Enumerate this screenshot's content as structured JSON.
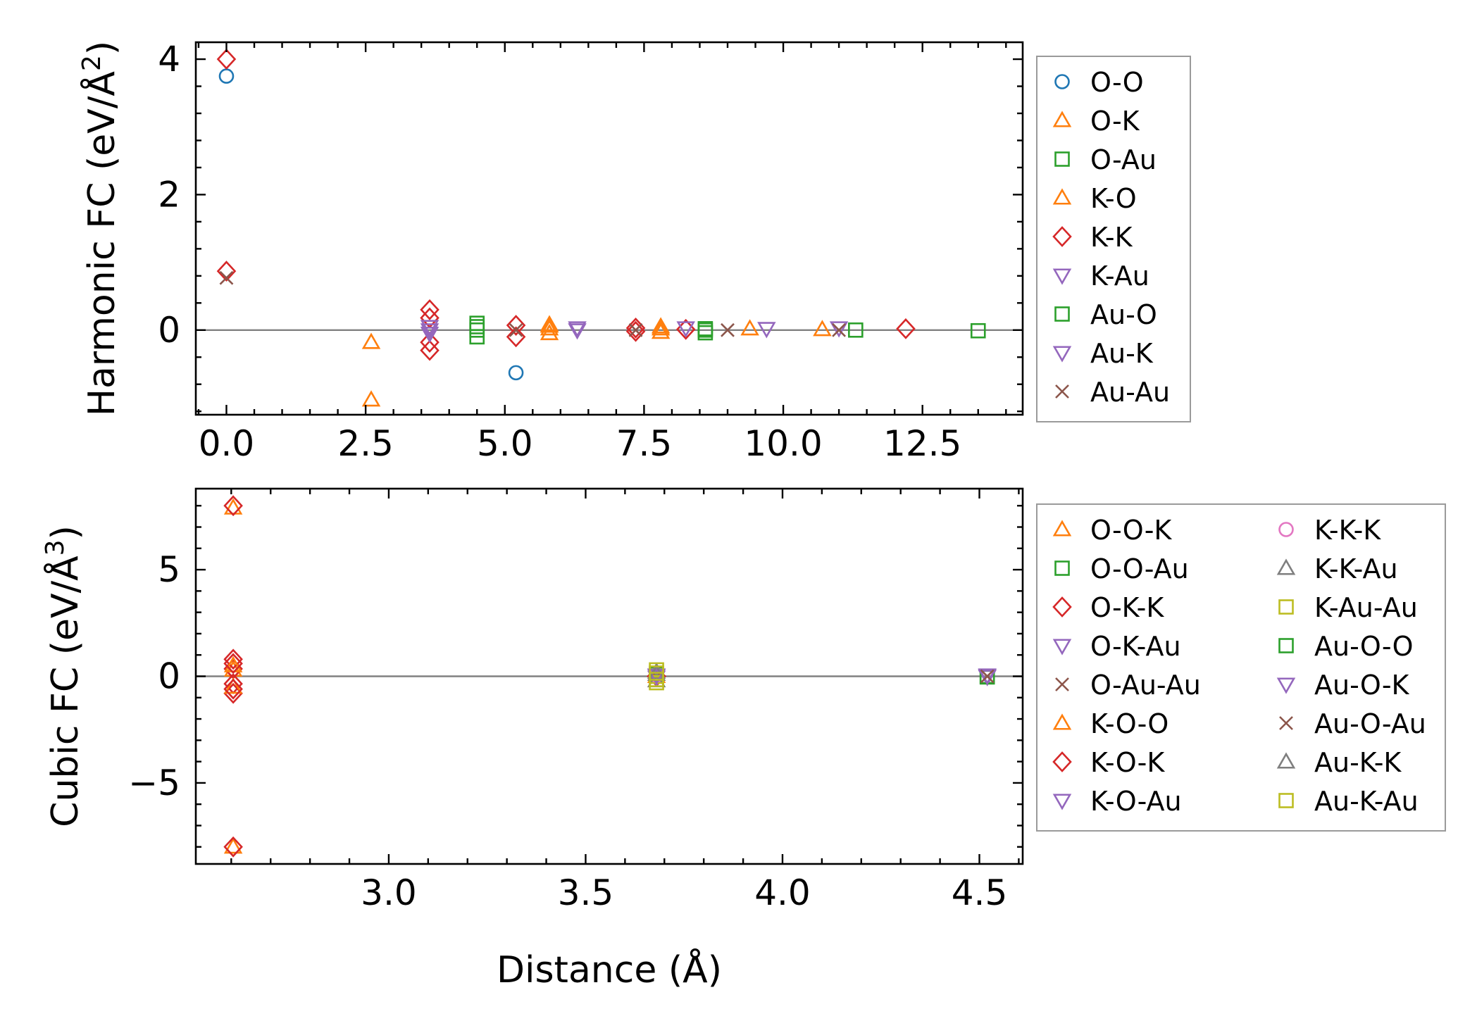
{
  "chart_data": [
    {
      "type": "scatter",
      "title": "",
      "xlabel": "",
      "ylabel": "Harmonic FC (eV/Å²)",
      "ylabel_parts": {
        "base": "Harmonic FC (eV/Å",
        "sup": "2",
        "close": ")"
      },
      "xlim": [
        -0.55,
        14.3
      ],
      "ylim": [
        -1.25,
        4.25
      ],
      "xticks": [
        0.0,
        2.5,
        5.0,
        7.5,
        10.0,
        12.5
      ],
      "xtick_labels": [
        "0.0",
        "2.5",
        "5.0",
        "7.5",
        "10.0",
        "12.5"
      ],
      "yticks": [
        0,
        2,
        4
      ],
      "ytick_labels": [
        "0",
        "2",
        "4"
      ],
      "hline": 0,
      "legend": {
        "position": "outside-right",
        "columns": 1
      },
      "series": [
        {
          "name": "O-O",
          "color": "#1f77b4",
          "marker": "circle",
          "points": [
            [
              0,
              3.75
            ],
            [
              5.2,
              -0.63
            ]
          ]
        },
        {
          "name": "O-K",
          "color": "#ff7f0e",
          "marker": "triangle-up",
          "points": [
            [
              2.6,
              -0.18
            ],
            [
              2.6,
              -1.03
            ],
            [
              5.8,
              0.08
            ],
            [
              5.8,
              0.02
            ],
            [
              5.8,
              -0.05
            ],
            [
              7.8,
              0.05
            ],
            [
              7.8,
              -0.03
            ],
            [
              9.4,
              0.02
            ]
          ]
        },
        {
          "name": "O-Au",
          "color": "#2ca02c",
          "marker": "square",
          "points": [
            [
              4.5,
              0.1
            ],
            [
              4.5,
              0.0
            ],
            [
              4.5,
              -0.1
            ],
            [
              8.6,
              0.02
            ],
            [
              8.6,
              -0.04
            ],
            [
              11.3,
              0.0
            ],
            [
              13.5,
              -0.01
            ]
          ]
        },
        {
          "name": "K-O",
          "color": "#ff7f0e",
          "marker": "triangle-up",
          "points": [
            [
              5.8,
              0.06
            ],
            [
              7.8,
              0.02
            ],
            [
              10.7,
              0.01
            ]
          ]
        },
        {
          "name": "K-K",
          "color": "#d62728",
          "marker": "diamond",
          "points": [
            [
              0,
              4.0
            ],
            [
              0,
              0.87
            ],
            [
              3.65,
              0.3
            ],
            [
              3.65,
              0.18
            ],
            [
              3.65,
              -0.18
            ],
            [
              3.65,
              -0.3
            ],
            [
              5.2,
              0.07
            ],
            [
              5.2,
              -0.1
            ],
            [
              7.35,
              0.03
            ],
            [
              7.35,
              -0.02
            ],
            [
              8.25,
              0.01
            ],
            [
              12.2,
              0.02
            ]
          ]
        },
        {
          "name": "K-Au",
          "color": "#9467bd",
          "marker": "triangle-down",
          "points": [
            [
              3.65,
              0.05
            ],
            [
              3.65,
              -0.05
            ],
            [
              6.3,
              0.03
            ],
            [
              8.25,
              0.03
            ],
            [
              11.0,
              0.03
            ]
          ]
        },
        {
          "name": "Au-O",
          "color": "#2ca02c",
          "marker": "square",
          "points": [
            [
              4.5,
              0.05
            ],
            [
              8.6,
              0.0
            ]
          ]
        },
        {
          "name": "Au-K",
          "color": "#9467bd",
          "marker": "triangle-down",
          "points": [
            [
              3.65,
              0.0
            ],
            [
              6.3,
              0.0
            ],
            [
              9.7,
              0.02
            ]
          ]
        },
        {
          "name": "Au-Au",
          "color": "#8c564b",
          "marker": "x",
          "points": [
            [
              0,
              0.77
            ],
            [
              5.2,
              0.0
            ],
            [
              7.35,
              0.0
            ],
            [
              9.0,
              0.0
            ],
            [
              11.0,
              0.0
            ]
          ]
        }
      ]
    },
    {
      "type": "scatter",
      "title": "",
      "xlabel": "Distance (Å)",
      "ylabel": "Cubic FC (eV/Å³)",
      "ylabel_parts": {
        "base": "Cubic FC (eV/Å",
        "sup": "3",
        "close": ")"
      },
      "xlim": [
        2.51,
        4.61
      ],
      "ylim": [
        -8.8,
        8.8
      ],
      "xticks": [
        3.0,
        3.5,
        4.0,
        4.5
      ],
      "xtick_labels": [
        "3.0",
        "3.5",
        "4.0",
        "4.5"
      ],
      "yticks": [
        -5,
        0,
        5
      ],
      "ytick_labels": [
        "−5",
        "0",
        "5"
      ],
      "hline": 0,
      "legend": {
        "position": "outside-right",
        "columns": 2
      },
      "series": [
        {
          "name": "O-O-K",
          "color": "#ff7f0e",
          "marker": "triangle-up",
          "points": [
            [
              2.605,
              7.9
            ],
            [
              2.605,
              -8.0
            ],
            [
              2.605,
              0.3
            ],
            [
              3.68,
              0.0
            ]
          ]
        },
        {
          "name": "O-O-Au",
          "color": "#2ca02c",
          "marker": "square",
          "points": [
            [
              3.68,
              0.1
            ],
            [
              4.52,
              0.0
            ]
          ]
        },
        {
          "name": "O-K-K",
          "color": "#d62728",
          "marker": "diamond",
          "points": [
            [
              2.605,
              8.0
            ],
            [
              2.605,
              -8.0
            ],
            [
              2.605,
              0.8
            ],
            [
              2.605,
              0.35
            ],
            [
              2.605,
              -0.35
            ],
            [
              2.605,
              -0.8
            ],
            [
              3.68,
              0.0
            ]
          ]
        },
        {
          "name": "O-K-Au",
          "color": "#9467bd",
          "marker": "triangle-down",
          "points": [
            [
              3.68,
              0.05
            ],
            [
              4.52,
              0.05
            ]
          ]
        },
        {
          "name": "O-Au-Au",
          "color": "#8c564b",
          "marker": "x",
          "points": [
            [
              3.68,
              0.0
            ],
            [
              4.52,
              0.0
            ]
          ]
        },
        {
          "name": "K-O-O",
          "color": "#ff7f0e",
          "marker": "triangle-up",
          "points": [
            [
              2.605,
              0.5
            ],
            [
              2.605,
              -0.5
            ]
          ]
        },
        {
          "name": "K-O-K",
          "color": "#d62728",
          "marker": "diamond",
          "points": [
            [
              2.605,
              0.6
            ],
            [
              2.605,
              -0.6
            ],
            [
              3.68,
              0.0
            ]
          ]
        },
        {
          "name": "K-O-Au",
          "color": "#9467bd",
          "marker": "triangle-down",
          "points": [
            [
              3.68,
              -0.05
            ],
            [
              4.52,
              -0.02
            ]
          ]
        },
        {
          "name": "K-K-K",
          "color": "#e377c2",
          "marker": "circle",
          "points": [
            [
              3.68,
              0.02
            ]
          ]
        },
        {
          "name": "K-K-Au",
          "color": "#7f7f7f",
          "marker": "triangle-up",
          "points": [
            [
              3.68,
              0.2
            ],
            [
              3.68,
              -0.2
            ]
          ]
        },
        {
          "name": "K-Au-Au",
          "color": "#bcbd22",
          "marker": "square",
          "points": [
            [
              3.68,
              0.3
            ],
            [
              3.68,
              -0.3
            ],
            [
              3.68,
              0.0
            ]
          ]
        },
        {
          "name": "Au-O-O",
          "color": "#2ca02c",
          "marker": "square",
          "points": [
            [
              4.52,
              -0.03
            ]
          ]
        },
        {
          "name": "Au-O-K",
          "color": "#9467bd",
          "marker": "triangle-down",
          "points": [
            [
              3.68,
              0.03
            ],
            [
              4.52,
              0.02
            ]
          ]
        },
        {
          "name": "Au-O-Au",
          "color": "#8c564b",
          "marker": "x",
          "points": [
            [
              4.52,
              0.0
            ]
          ]
        },
        {
          "name": "Au-K-K",
          "color": "#7f7f7f",
          "marker": "triangle-up",
          "points": [
            [
              3.68,
              0.1
            ]
          ]
        },
        {
          "name": "Au-K-Au",
          "color": "#bcbd22",
          "marker": "square",
          "points": [
            [
              3.68,
              -0.15
            ],
            [
              3.68,
              0.15
            ]
          ]
        }
      ]
    }
  ]
}
